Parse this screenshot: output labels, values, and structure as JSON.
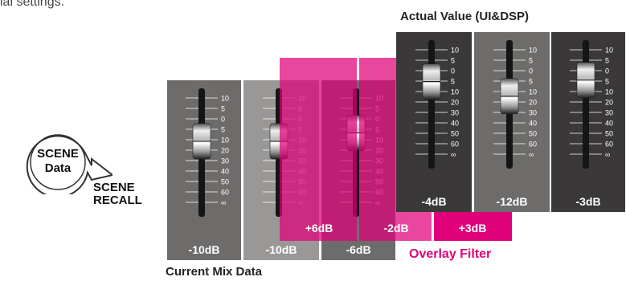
{
  "partial_top_text": "ial settings.",
  "actual_value_caption": "Actual Value (UI&DSP)",
  "current_mix_caption": "Current Mix Data",
  "overlay_filter_label": "Overlay Filter",
  "scene_data": {
    "line1": "SCENE",
    "line2": "Data"
  },
  "scene_recall": {
    "line1": "SCENE",
    "line2": "RECALL"
  },
  "scale_ticks": [
    "10",
    "5",
    "0",
    "5",
    "10",
    "20",
    "30",
    "40",
    "50",
    "60",
    "∞"
  ],
  "current_mix": [
    {
      "value": "-10dB"
    },
    {
      "value": "-10dB"
    },
    {
      "value": "-6dB"
    }
  ],
  "overlay": [
    {
      "value": "+6dB"
    },
    {
      "value": "-2dB"
    },
    {
      "value": "+3dB"
    }
  ],
  "actual": [
    {
      "value": "-4dB"
    },
    {
      "value": "-12dB"
    },
    {
      "value": "-3dB"
    }
  ],
  "colors": {
    "magenta": "#e0007a",
    "panel_dark": "#3a3838",
    "panel_mid": "#6e6c6b",
    "panel_light": "#9a9896"
  }
}
